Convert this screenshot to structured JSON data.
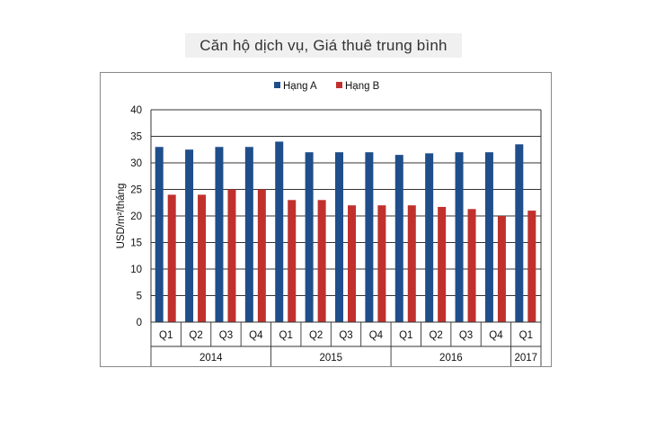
{
  "title": "Căn hộ dịch vụ, Giá thuê trung bình",
  "chart_data": {
    "type": "bar",
    "ylabel": "USD/m²/tháng",
    "ylim": [
      0,
      40
    ],
    "yticks": [
      0,
      5,
      10,
      15,
      20,
      25,
      30,
      35,
      40
    ],
    "grid": true,
    "legend_position": "top-center",
    "categories": [
      "Q1",
      "Q2",
      "Q3",
      "Q4",
      "Q1",
      "Q2",
      "Q3",
      "Q4",
      "Q1",
      "Q2",
      "Q3",
      "Q4",
      "Q1"
    ],
    "groups": [
      {
        "label": "2014",
        "count": 4
      },
      {
        "label": "2015",
        "count": 4
      },
      {
        "label": "2016",
        "count": 4
      },
      {
        "label": "2017",
        "count": 1
      }
    ],
    "series": [
      {
        "name": "Hạng A",
        "color": "#1f4e8a",
        "values": [
          33,
          32.5,
          33,
          33,
          34,
          32,
          32,
          32,
          31.5,
          31.8,
          32,
          32,
          33.5
        ]
      },
      {
        "name": "Hạng B",
        "color": "#c0312e",
        "values": [
          24,
          24,
          25,
          25,
          23,
          23,
          22,
          22,
          22,
          21.7,
          21.3,
          20,
          21
        ]
      }
    ]
  }
}
